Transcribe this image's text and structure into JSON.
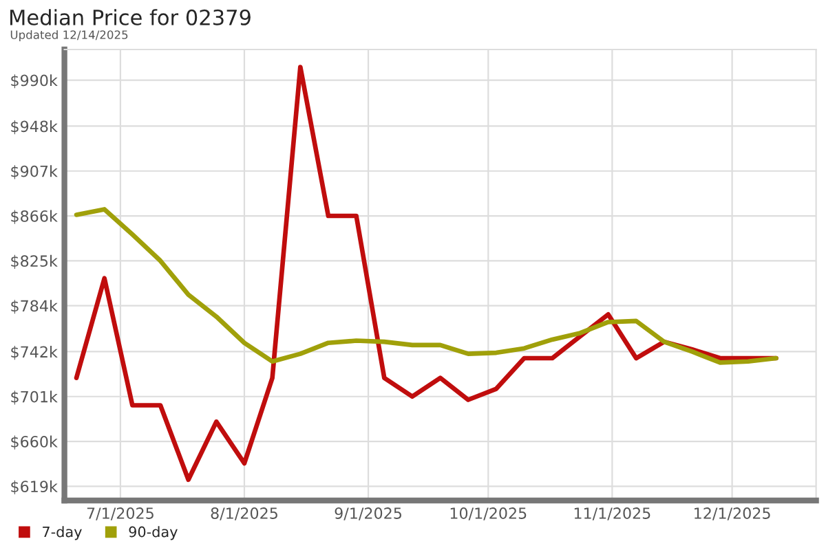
{
  "chart_data": {
    "type": "line",
    "title": "Median Price for 02379",
    "subtitle": "Updated 12/14/2025",
    "x": [
      "2025-06-20",
      "2025-06-27",
      "2025-07-04",
      "2025-07-11",
      "2025-07-18",
      "2025-07-25",
      "2025-08-01",
      "2025-08-08",
      "2025-08-15",
      "2025-08-22",
      "2025-08-29",
      "2025-09-05",
      "2025-09-12",
      "2025-09-19",
      "2025-09-26",
      "2025-10-03",
      "2025-10-10",
      "2025-10-17",
      "2025-10-24",
      "2025-10-31",
      "2025-11-07",
      "2025-11-14",
      "2025-11-21",
      "2025-11-28",
      "2025-12-05",
      "2025-12-12"
    ],
    "series": [
      {
        "name": "7-day",
        "color": "#c00d0d",
        "values": [
          718000,
          809000,
          693000,
          693000,
          625000,
          678000,
          640000,
          718000,
          1002000,
          866000,
          866000,
          718000,
          701000,
          718000,
          698000,
          708000,
          736000,
          736000,
          756000,
          776000,
          736000,
          751000,
          744000,
          736000,
          736000,
          736000
        ]
      },
      {
        "name": "90-day",
        "color": "#a0a00a",
        "values": [
          867000,
          872000,
          849000,
          825000,
          794000,
          774000,
          750000,
          733000,
          740000,
          750000,
          752000,
          751000,
          748000,
          748000,
          740000,
          741000,
          745000,
          753000,
          759000,
          769000,
          770000,
          751000,
          742000,
          732000,
          733000,
          736000
        ]
      }
    ],
    "xlim": [
      "2025-06-17",
      "2025-12-22"
    ],
    "xticks": [
      {
        "value": "2025-07-01",
        "label": "7/1/2025"
      },
      {
        "value": "2025-08-01",
        "label": "8/1/2025"
      },
      {
        "value": "2025-09-01",
        "label": "9/1/2025"
      },
      {
        "value": "2025-10-01",
        "label": "10/1/2025"
      },
      {
        "value": "2025-11-01",
        "label": "11/1/2025"
      },
      {
        "value": "2025-12-01",
        "label": "12/1/2025"
      }
    ],
    "ylim": [
      606000,
      1018000
    ],
    "yticks": [
      {
        "value": 619000,
        "label": "$619k"
      },
      {
        "value": 660000,
        "label": "$660k"
      },
      {
        "value": 701000,
        "label": "$701k"
      },
      {
        "value": 742000,
        "label": "$742k"
      },
      {
        "value": 784000,
        "label": "$784k"
      },
      {
        "value": 825000,
        "label": "$825k"
      },
      {
        "value": 866000,
        "label": "$866k"
      },
      {
        "value": 907000,
        "label": "$907k"
      },
      {
        "value": 948000,
        "label": "$948k"
      },
      {
        "value": 990000,
        "label": "$990k"
      }
    ],
    "grid": true,
    "legend": "bottom left",
    "marker": "none",
    "line_style": "solid"
  }
}
